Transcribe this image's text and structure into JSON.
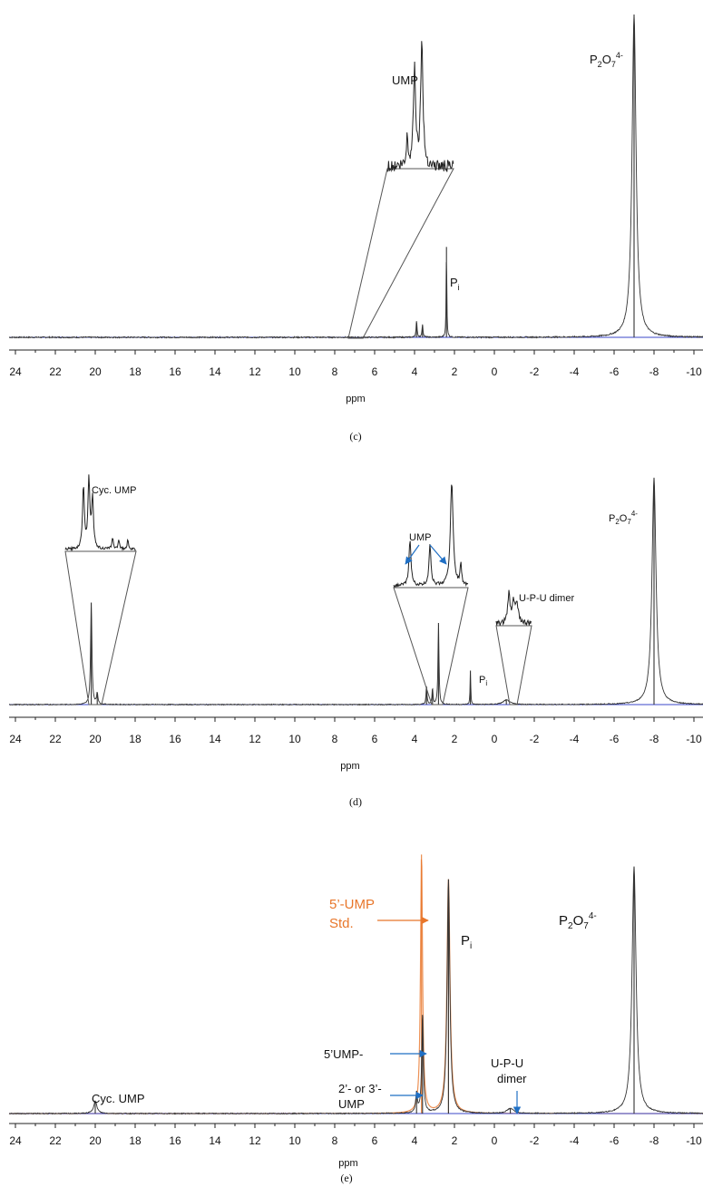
{
  "chart_data": [
    {
      "type": "line",
      "panel_label": "(c)",
      "xlabel": "ppm",
      "xlim": [
        25,
        -10.5
      ],
      "x_reversed": true,
      "ticks": [
        24,
        22,
        20,
        18,
        16,
        14,
        12,
        10,
        8,
        6,
        4,
        2,
        0,
        -2,
        -4,
        -6,
        -8,
        -10
      ],
      "baseline_color": "#3b47c9",
      "trace_color": "#333333",
      "peaks": [
        {
          "name": "P2O7 4-",
          "x": -7.0,
          "height": 1.0,
          "width": 0.12
        },
        {
          "name": "Pi",
          "x": 2.4,
          "height": 0.28,
          "width": 0.02
        },
        {
          "name": "UMP",
          "x": 3.9,
          "height": 0.05,
          "width": 0.03
        },
        {
          "name": "UMP",
          "x": 3.6,
          "height": 0.04,
          "width": 0.03
        }
      ],
      "inset": {
        "from_x": [
          4.0,
          3.4
        ],
        "peaks": [
          4.1,
          3.75
        ]
      },
      "annotations": [
        {
          "text": "UMP"
        },
        {
          "text": "P",
          "sub": "i"
        },
        {
          "text": "P",
          "sub": "2",
          "mid": "O",
          "sub2": "7",
          "sup": "4-"
        }
      ]
    },
    {
      "type": "line",
      "panel_label": "(d)",
      "xlabel": "ppm",
      "xlim": [
        25,
        -10.5
      ],
      "x_reversed": true,
      "ticks": [
        24,
        22,
        20,
        18,
        16,
        14,
        12,
        10,
        8,
        6,
        4,
        2,
        0,
        -2,
        -4,
        -6,
        -8,
        -10
      ],
      "baseline_color": "#3b47c9",
      "trace_color": "#333333",
      "peaks": [
        {
          "name": "P2O7 4-",
          "x": -8.0,
          "height": 1.0,
          "width": 0.12
        },
        {
          "name": "Cyc. UMP",
          "x": 20.2,
          "height": 0.45,
          "width": 0.04
        },
        {
          "name": "Cyc. UMP",
          "x": 19.9,
          "height": 0.05,
          "width": 0.04
        },
        {
          "name": "UMP",
          "x": 3.4,
          "height": 0.08,
          "width": 0.03
        },
        {
          "name": "UMP",
          "x": 3.1,
          "height": 0.07,
          "width": 0.03
        },
        {
          "name": "UMP",
          "x": 2.8,
          "height": 0.36,
          "width": 0.03
        },
        {
          "name": "Pi",
          "x": 1.2,
          "height": 0.15,
          "width": 0.02
        },
        {
          "name": "U-P-U dimer",
          "x": -0.6,
          "height": 0.02,
          "width": 0.2
        }
      ],
      "annotations": [
        {
          "text": "Cyc. UMP"
        },
        {
          "text": "UMP"
        },
        {
          "text": "U-P-U dimer"
        },
        {
          "text": "P",
          "sub": "i"
        },
        {
          "text": "P",
          "sub": "2",
          "mid": "O",
          "sub2": "7",
          "sup": "4-"
        }
      ]
    },
    {
      "type": "line",
      "panel_label": "(e)",
      "xlabel": "ppm",
      "xlim": [
        25,
        -10.5
      ],
      "x_reversed": true,
      "ticks": [
        24,
        22,
        20,
        18,
        16,
        14,
        12,
        10,
        8,
        6,
        4,
        2,
        0,
        -2,
        -4,
        -6,
        -8,
        -10
      ],
      "baseline_color": "#3b47c9",
      "trace_color": "#333333",
      "overlay_color": "#e8762a",
      "peaks": [
        {
          "name": "P2O7 4-",
          "x": -7.0,
          "height": 1.0,
          "width": 0.12
        },
        {
          "name": "Pi",
          "x": 2.3,
          "height": 0.95,
          "width": 0.08
        },
        {
          "name": "5'UMP",
          "x": 3.6,
          "height": 0.4,
          "width": 0.05
        },
        {
          "name": "2'- or 3'-UMP",
          "x": 3.9,
          "height": 0.08,
          "width": 0.05
        },
        {
          "name": "Cyc. UMP",
          "x": 20.0,
          "height": 0.05,
          "width": 0.1
        },
        {
          "name": "U-P-U dimer",
          "x": -0.8,
          "height": 0.02,
          "width": 0.2
        }
      ],
      "overlay_peaks": [
        {
          "name": "5'-UMP Std.",
          "x": 3.65,
          "height": 1.05,
          "width": 0.06
        },
        {
          "name": "Pi",
          "x": 2.3,
          "height": 0.95,
          "width": 0.09
        }
      ],
      "annotations": [
        {
          "text": "5’-UMP"
        },
        {
          "text": "Std."
        },
        {
          "text": "P",
          "sub": "i"
        },
        {
          "text": "P",
          "sub": "2",
          "mid": "O",
          "sub2": "7",
          "sup": "4-"
        },
        {
          "text": "5’UMP-"
        },
        {
          "text": "2’- or 3’-"
        },
        {
          "text": "UMP"
        },
        {
          "text": "U-P-U"
        },
        {
          "text": "dimer"
        },
        {
          "text": "Cyc. UMP"
        }
      ]
    }
  ]
}
